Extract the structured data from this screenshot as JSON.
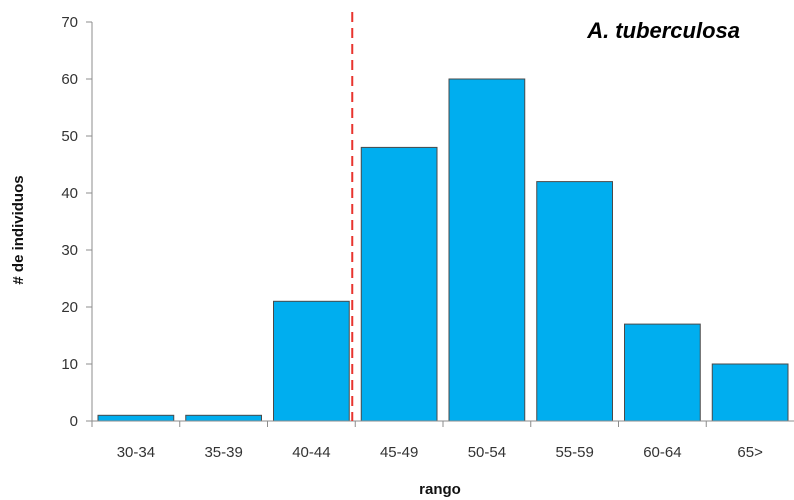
{
  "chart_data": {
    "type": "bar",
    "title": "A. tuberculosa",
    "xlabel": "rango",
    "ylabel": "# de individuos",
    "categories": [
      "30-34",
      "35-39",
      "40-44",
      "45-49",
      "50-54",
      "55-59",
      "60-64",
      "65>"
    ],
    "values": [
      1,
      1,
      21,
      48,
      60,
      42,
      17,
      10
    ],
    "ylim": [
      0,
      70
    ],
    "yticks": [
      0,
      10,
      20,
      30,
      40,
      50,
      60,
      70
    ],
    "grid": false,
    "legend": "none",
    "bar_color": "#00AEEF",
    "bar_edge_color": "#4a4a4a",
    "reference_line": {
      "position": "between 40-44 and 45-49",
      "color": "#E8342E",
      "style": "dashed"
    }
  }
}
